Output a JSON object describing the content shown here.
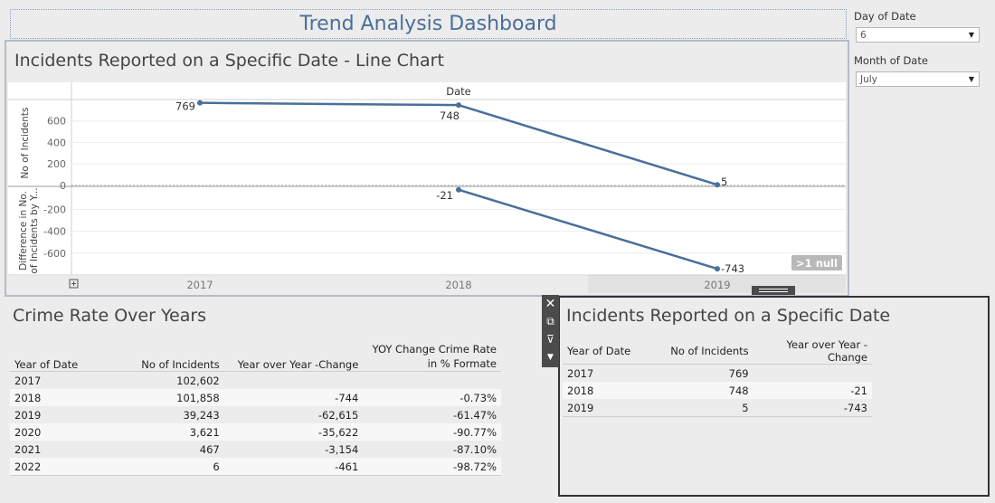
{
  "dashboard": {
    "title": "Trend Analysis Dashboard"
  },
  "filters": {
    "day": {
      "label": "Day of Date",
      "value": "6"
    },
    "month": {
      "label": "Month of Date",
      "value": "July"
    }
  },
  "line_chart": {
    "title": "Incidents Reported on a Specific Date - Line Chart",
    "null_badge": ">1 null",
    "expand_icon": "plus-square-icon"
  },
  "chart_data": {
    "type": "line",
    "column_header": "Date",
    "x": [
      "2017",
      "2018",
      "2019"
    ],
    "panes": [
      {
        "ylabel": "No of Incidents",
        "yticks": [
          0,
          200,
          400,
          600
        ],
        "ylim": [
          -10,
          800
        ],
        "series": [
          {
            "values": [
              769,
              748,
              5
            ],
            "labels": [
              "769",
              "748",
              "5"
            ]
          }
        ]
      },
      {
        "ylabel": "Difference in No. of Incidents by Y...",
        "yticks": [
          -200,
          -400,
          -600
        ],
        "ylim": [
          -800,
          10
        ],
        "series": [
          {
            "values": [
              null,
              -21,
              -743
            ],
            "labels": [
              "",
              "-21",
              "-743"
            ]
          }
        ]
      }
    ],
    "line_color": "#4a6f9a",
    "grid": true
  },
  "crime_table": {
    "title": "Crime Rate Over Years",
    "headers": [
      "Year of Date",
      "No of Incidents",
      "Year over Year -Change",
      "YOY Change Crime Rate in % Formate"
    ],
    "rows": [
      [
        "2017",
        "102,602",
        "",
        ""
      ],
      [
        "2018",
        "101,858",
        "-744",
        "-0.73%"
      ],
      [
        "2019",
        "39,243",
        "-62,615",
        "-61.47%"
      ],
      [
        "2020",
        "3,621",
        "-35,622",
        "-90.77%"
      ],
      [
        "2021",
        "467",
        "-3,154",
        "-87.10%"
      ],
      [
        "2022",
        "6",
        "-461",
        "-98.72%"
      ]
    ]
  },
  "date_table": {
    "title": "Incidents Reported on a Specific Date",
    "headers": [
      "Year of Date",
      "No of Incidents",
      "Year over Year -Change"
    ],
    "rows": [
      [
        "2017",
        "769",
        ""
      ],
      [
        "2018",
        "748",
        "-21"
      ],
      [
        "2019",
        "5",
        "-743"
      ]
    ]
  },
  "toolbar": {
    "icons": [
      "close-icon",
      "popout-icon",
      "filter-icon",
      "more-options-icon"
    ]
  }
}
